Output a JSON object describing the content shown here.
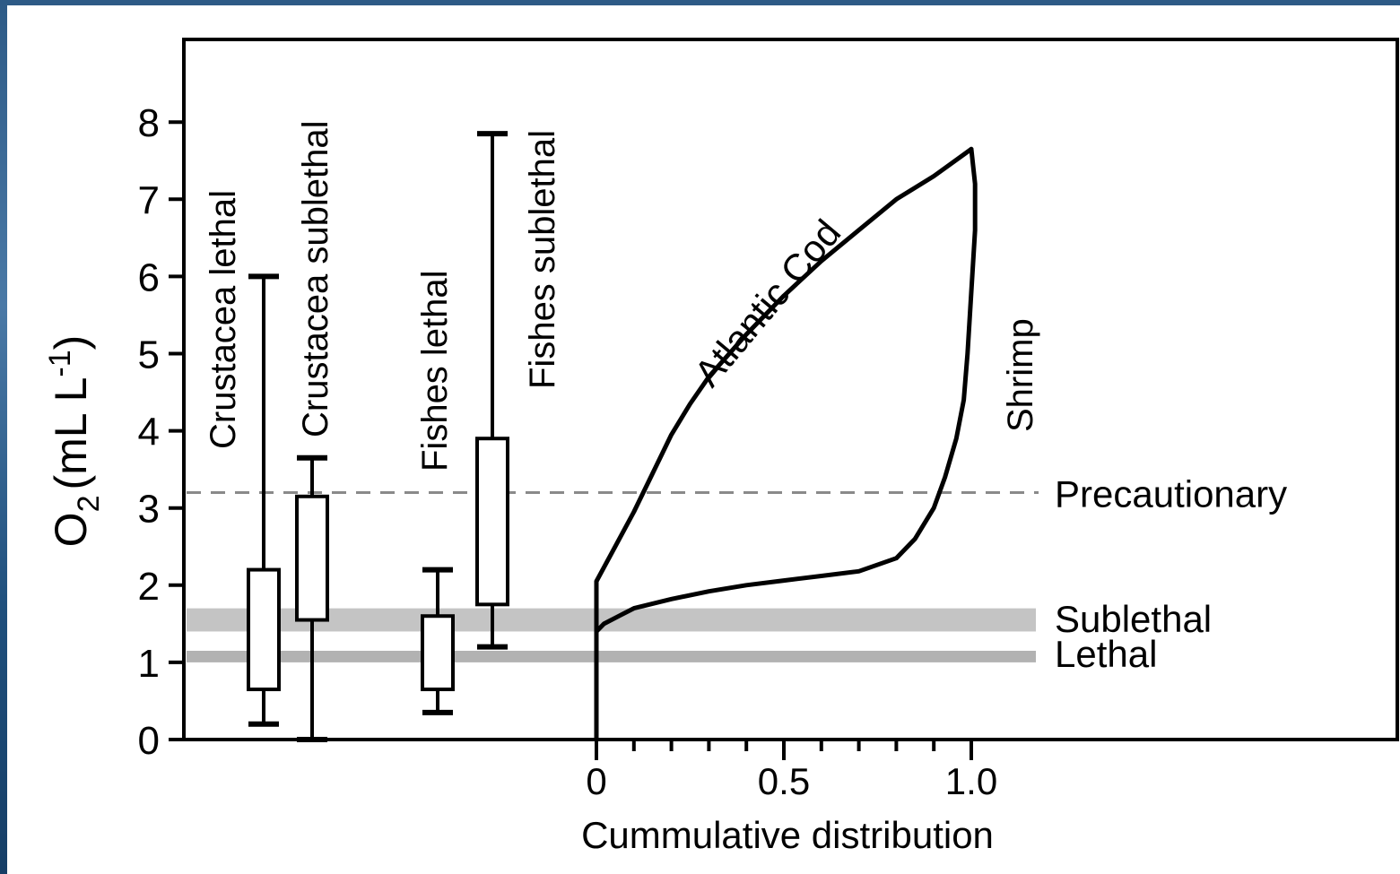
{
  "chart_data": {
    "type": "box-and-cumulative",
    "ylabel": "O2 (mL L-1)",
    "ylabel_parts": {
      "base": "O",
      "sub": "2",
      "unit_open": "(mL L",
      "sup": "-1",
      "unit_close": ")"
    },
    "ylim": [
      0,
      9
    ],
    "yticks": [
      0,
      1,
      2,
      3,
      4,
      5,
      6,
      7,
      8
    ],
    "xlabel": "Cummulative distribution",
    "xlim": [
      0,
      1
    ],
    "xticks": [
      0,
      0.5,
      1.0
    ],
    "xtick_labels": [
      "0",
      "0.5",
      "1.0"
    ],
    "grid": false,
    "boxes": [
      {
        "name": "Crustacea lethal",
        "min": 0.2,
        "q1": 0.65,
        "q3": 2.2,
        "max": 6.0
      },
      {
        "name": "Crustacea sublethal",
        "min": 0.0,
        "q1": 1.55,
        "q3": 3.15,
        "max": 3.65
      },
      {
        "name": "Fishes lethal",
        "min": 0.35,
        "q1": 0.65,
        "q3": 1.6,
        "max": 2.2
      },
      {
        "name": "Fishes sublethal",
        "min": 1.2,
        "q1": 1.75,
        "q3": 3.9,
        "max": 7.85
      }
    ],
    "series": [
      {
        "name": "Atlantic Cod",
        "x": [
          0,
          0,
          0.05,
          0.1,
          0.15,
          0.2,
          0.25,
          0.3,
          0.4,
          0.5,
          0.6,
          0.7,
          0.8,
          0.9,
          1.0
        ],
        "y": [
          0,
          2.05,
          2.5,
          2.95,
          3.45,
          3.95,
          4.35,
          4.7,
          5.25,
          5.75,
          6.2,
          6.6,
          7.0,
          7.3,
          7.65
        ]
      },
      {
        "name": "Shrimp",
        "x": [
          0,
          0,
          0.02,
          0.06,
          0.1,
          0.2,
          0.3,
          0.4,
          0.5,
          0.6,
          0.7,
          0.8,
          0.85,
          0.9,
          0.93,
          0.96,
          0.98,
          0.99,
          1.0,
          1.01,
          1.01,
          1.0
        ],
        "y": [
          0,
          1.4,
          1.5,
          1.6,
          1.7,
          1.82,
          1.92,
          2.0,
          2.06,
          2.12,
          2.18,
          2.35,
          2.6,
          3.0,
          3.4,
          3.9,
          4.4,
          5.0,
          5.8,
          6.6,
          7.2,
          7.65
        ]
      }
    ],
    "reference_lines": [
      {
        "name": "Precautionary",
        "y": 3.2,
        "style": "dashed",
        "color": "#8a8a8a"
      }
    ],
    "reference_bands": [
      {
        "name": "Sublethal",
        "y0": 1.4,
        "y1": 1.7,
        "color": "#c4c4c4"
      },
      {
        "name": "Lethal",
        "y0": 1.0,
        "y1": 1.15,
        "color": "#b2b2b2"
      }
    ]
  }
}
